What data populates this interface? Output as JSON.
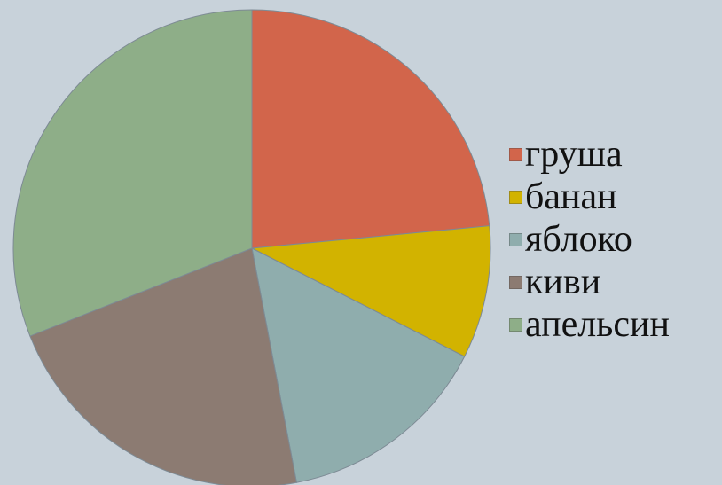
{
  "chart_data": {
    "type": "pie",
    "title": "",
    "categories": [
      "груша",
      "банан",
      "яблоко",
      "киви",
      "апельсин"
    ],
    "values": [
      23.5,
      9,
      14.5,
      22,
      31
    ],
    "colors": [
      "#d2654b",
      "#d2b300",
      "#8fadad",
      "#8c7b72",
      "#8eae88"
    ],
    "start_angle_deg": 0,
    "direction": "clockwise",
    "legend_position": "right"
  }
}
